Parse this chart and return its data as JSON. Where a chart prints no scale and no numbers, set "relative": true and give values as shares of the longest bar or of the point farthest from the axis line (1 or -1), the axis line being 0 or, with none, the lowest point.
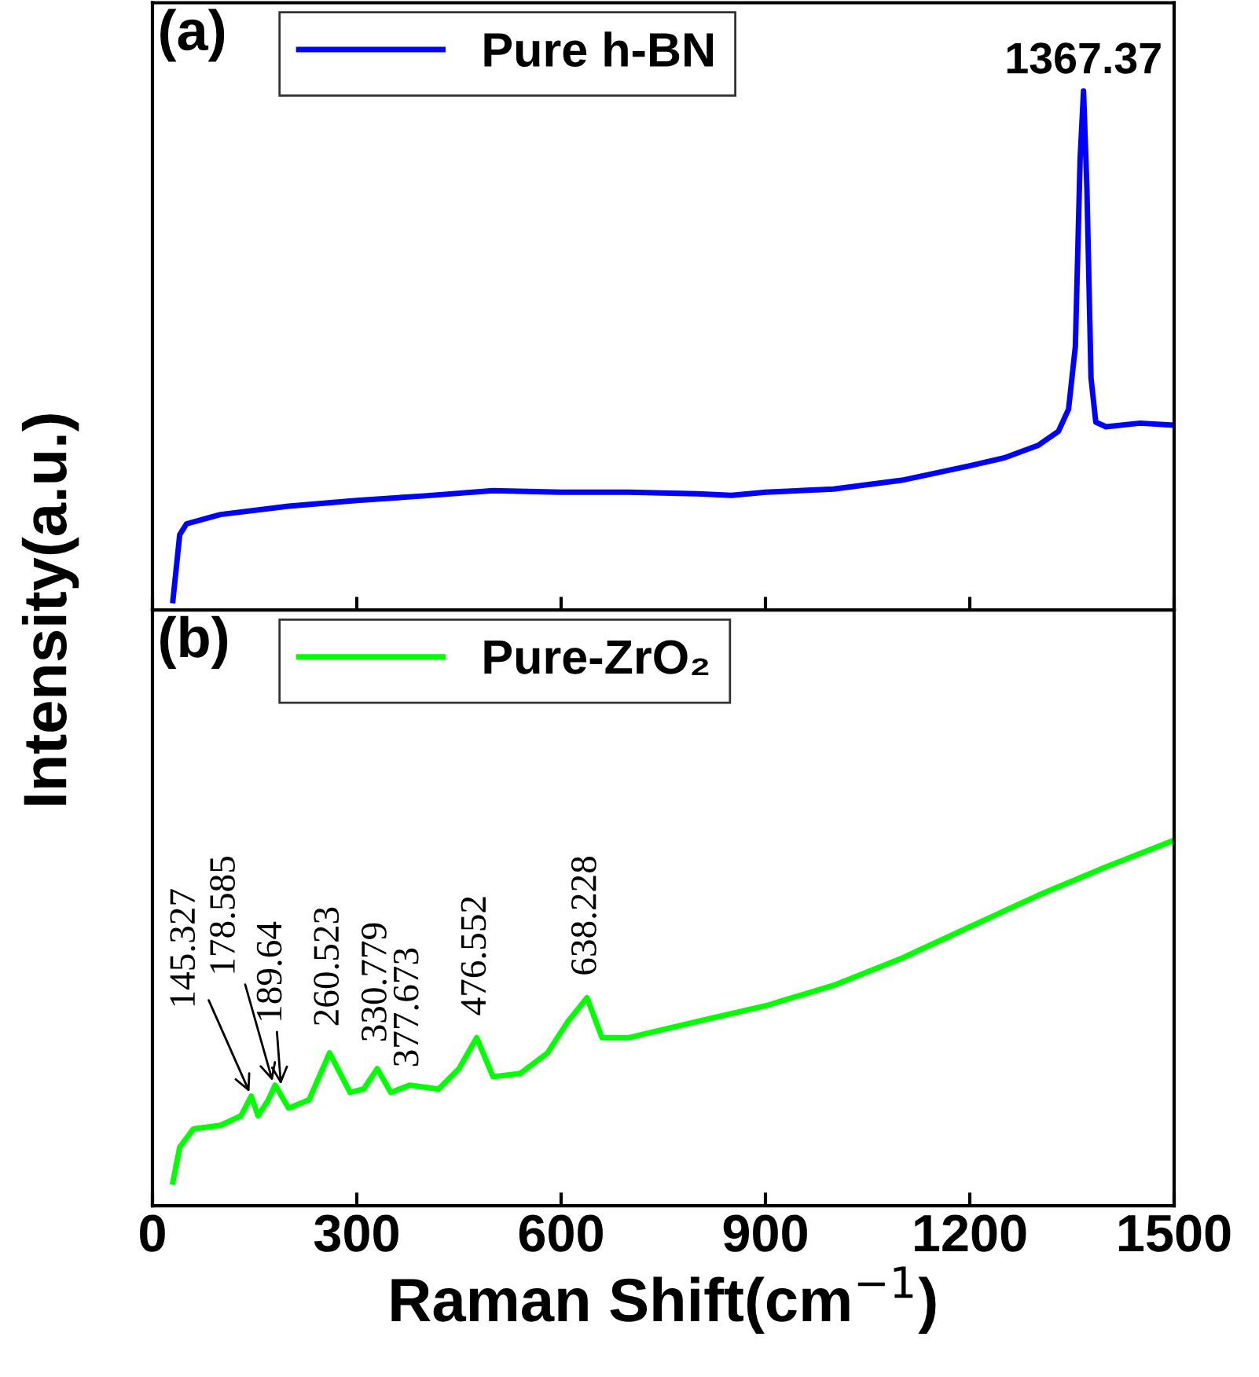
{
  "chart_data": [
    {
      "type": "line",
      "relative": true,
      "xlim": [
        0,
        1500
      ],
      "xticks": [
        0,
        300,
        600,
        900,
        1200,
        1500
      ],
      "tick_labels": false,
      "ylabel": "Intensity(a.u.)",
      "legend": "top left",
      "grid": false,
      "annotations": [
        "(a)",
        {
          "text": "1367.37",
          "x": 1367,
          "y": 1.0
        }
      ],
      "series": [
        {
          "name": "Pure h-BN",
          "color": "#0000ff",
          "x": [
            30,
            40,
            50,
            100,
            200,
            300,
            400,
            500,
            600,
            700,
            800,
            850,
            900,
            1000,
            1100,
            1200,
            1250,
            1300,
            1330,
            1345,
            1355,
            1362,
            1367,
            1372,
            1378,
            1385,
            1400,
            1450,
            1500
          ],
          "values": [
            0.018,
            0.145,
            0.166,
            0.184,
            0.2,
            0.211,
            0.22,
            0.23,
            0.227,
            0.227,
            0.224,
            0.221,
            0.227,
            0.233,
            0.25,
            0.278,
            0.293,
            0.317,
            0.344,
            0.387,
            0.508,
            0.87,
            1.0,
            0.81,
            0.447,
            0.362,
            0.353,
            0.36,
            0.356
          ]
        }
      ]
    },
    {
      "type": "line",
      "relative": true,
      "xlim": [
        0,
        1500
      ],
      "xticks": [
        0,
        300,
        600,
        900,
        1200,
        1500
      ],
      "tick_labels": "x",
      "xlabel": "Raman Shift(cm$^{−1}$)",
      "legend": "top left",
      "grid": false,
      "annotations": [
        "(b)",
        {
          "text": "145.327",
          "x": 145,
          "y": 0.3
        },
        {
          "text": "178.585",
          "x": 178,
          "y": 0.33
        },
        {
          "text": "189.64",
          "x": 189,
          "y": 0.32
        },
        {
          "text": "260.523",
          "x": 260,
          "y": 0.418
        },
        {
          "text": "330.779",
          "x": 330,
          "y": 0.375
        },
        {
          "text": "377.673",
          "x": 377,
          "y": 0.33
        },
        {
          "text": "476.552",
          "x": 476,
          "y": 0.46
        },
        {
          "text": "638.228",
          "x": 638,
          "y": 0.569
        }
      ],
      "series": [
        {
          "name": "Pure-ZrO₂",
          "color": "#00ff00",
          "x": [
            30,
            40,
            60,
            100,
            130,
            145,
            155,
            170,
            180,
            200,
            230,
            260,
            290,
            310,
            330,
            350,
            378,
            420,
            450,
            476,
            500,
            540,
            580,
            610,
            638,
            660,
            700,
            800,
            900,
            1000,
            1100,
            1200,
            1300,
            1400,
            1500
          ],
          "values": [
            0.065,
            0.16,
            0.21,
            0.22,
            0.246,
            0.3,
            0.246,
            0.289,
            0.33,
            0.267,
            0.29,
            0.418,
            0.31,
            0.319,
            0.375,
            0.31,
            0.33,
            0.319,
            0.375,
            0.46,
            0.353,
            0.362,
            0.418,
            0.504,
            0.569,
            0.46,
            0.46,
            0.504,
            0.547,
            0.603,
            0.677,
            0.763,
            0.849,
            0.927,
            1.0
          ]
        }
      ]
    }
  ]
}
